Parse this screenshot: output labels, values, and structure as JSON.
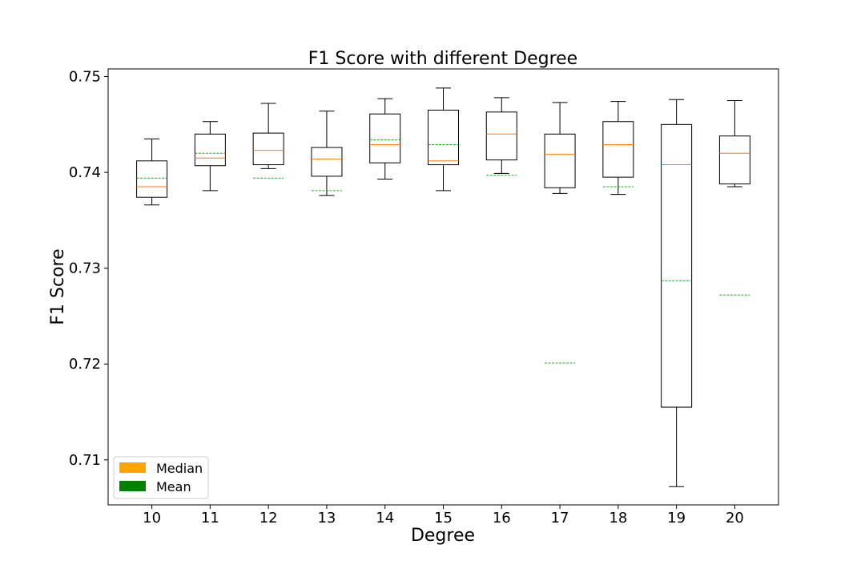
{
  "chart_data": {
    "type": "box",
    "title": "F1 Score with different Degree",
    "xlabel": "Degree",
    "ylabel": "F1 Score",
    "ylim": [
      0.7053,
      0.7508
    ],
    "yticks": [
      0.71,
      0.72,
      0.73,
      0.74,
      0.75
    ],
    "categories": [
      "10",
      "11",
      "12",
      "13",
      "14",
      "15",
      "16",
      "17",
      "18",
      "19",
      "20"
    ],
    "boxes": [
      {
        "whislo": 0.7366,
        "q1": 0.7374,
        "med": 0.7385,
        "q3": 0.7412,
        "whishi": 0.7435,
        "mean": 0.7394
      },
      {
        "whislo": 0.7381,
        "q1": 0.7407,
        "med": 0.7415,
        "q3": 0.744,
        "whishi": 0.7453,
        "mean": 0.742
      },
      {
        "whislo": 0.7404,
        "q1": 0.7408,
        "med": 0.7423,
        "q3": 0.7441,
        "whishi": 0.7472,
        "mean": 0.7394
      },
      {
        "whislo": 0.7376,
        "q1": 0.7396,
        "med": 0.7414,
        "q3": 0.7426,
        "whishi": 0.7464,
        "mean": 0.7381
      },
      {
        "whislo": 0.7393,
        "q1": 0.741,
        "med": 0.7429,
        "q3": 0.7461,
        "whishi": 0.7477,
        "mean": 0.7434
      },
      {
        "whislo": 0.7381,
        "q1": 0.7408,
        "med": 0.7412,
        "q3": 0.7465,
        "whishi": 0.7488,
        "mean": 0.7429
      },
      {
        "whislo": 0.7399,
        "q1": 0.7413,
        "med": 0.744,
        "q3": 0.7463,
        "whishi": 0.7478,
        "mean": 0.7397
      },
      {
        "whislo": 0.7378,
        "q1": 0.7384,
        "med": 0.7419,
        "q3": 0.744,
        "whishi": 0.7473,
        "mean": 0.7201
      },
      {
        "whislo": 0.7377,
        "q1": 0.7395,
        "med": 0.7429,
        "q3": 0.7453,
        "whishi": 0.7474,
        "mean": 0.7385
      },
      {
        "whislo": 0.7072,
        "q1": 0.7155,
        "med": 0.7408,
        "q3": 0.745,
        "whishi": 0.7476,
        "mean": 0.7287
      },
      {
        "whislo": 0.7385,
        "q1": 0.7388,
        "med": 0.742,
        "q3": 0.7438,
        "whishi": 0.7475,
        "mean": 0.7272
      }
    ],
    "legend": {
      "position": "lower-left",
      "entries": [
        {
          "label": "Median",
          "color": "#ffa500"
        },
        {
          "label": "Mean",
          "color": "#008000"
        }
      ]
    },
    "colors": {
      "median_line": "#ff7f0e",
      "mean_line": "#2ca02c",
      "box": "#000000"
    },
    "grid": false
  }
}
